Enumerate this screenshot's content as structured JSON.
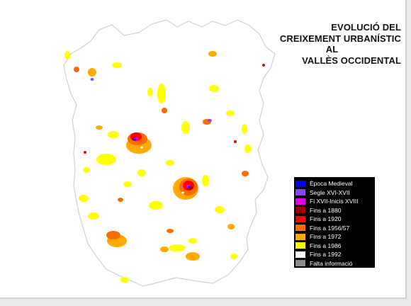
{
  "title": {
    "line1": "EVOLUCIÓ DEL",
    "line2": "CREIXEMENT URBANÍSTIC",
    "line3": "AL",
    "line4": "VALLÈS OCCIDENTAL"
  },
  "legend": {
    "items": [
      {
        "label": "Època Medieval",
        "color": "#0000ff"
      },
      {
        "label": "Segle XVI-XVII",
        "color": "#8844ff"
      },
      {
        "label": "Fi XVII-Inicis XVIII",
        "color": "#e600e6"
      },
      {
        "label": "Fins a 1880",
        "color": "#a00000"
      },
      {
        "label": "Fins a 1920",
        "color": "#ff0000"
      },
      {
        "label": "Fins a 1956/57",
        "color": "#ff6a00"
      },
      {
        "label": "Fins a 1972",
        "color": "#ffaa00"
      },
      {
        "label": "Fins a 1986",
        "color": "#ffff00"
      },
      {
        "label": "Fins a 1992",
        "color": "#ffffff"
      },
      {
        "label": "Falta informació",
        "color": "#8a8a8a"
      }
    ]
  },
  "colors": {
    "territory_fill": "#ffffff",
    "territory_border": "#d3d3d3",
    "background": "#ffffff"
  }
}
